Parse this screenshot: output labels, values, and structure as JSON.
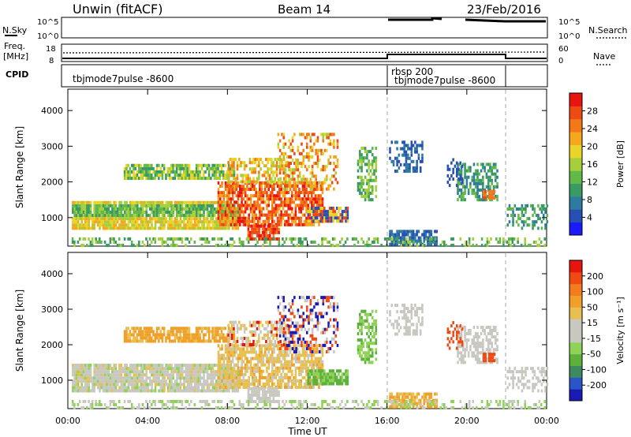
{
  "header": {
    "title": "Unwin (fitACF)",
    "beam": "Beam 14",
    "date": "23/Feb/2016"
  },
  "params": {
    "nsky_label": "N.Sky",
    "nsky_ticks": [
      "10^5",
      "10^0"
    ],
    "nsearch_label": "N.Search",
    "freq_label_line1": "Freq.",
    "freq_label_line2": "[MHz]",
    "freq_ticks": [
      "18",
      "8"
    ],
    "nave_ticks": [
      "60",
      "0"
    ],
    "nave_label": "Nave",
    "cpid_label": "CPID"
  },
  "cpid": {
    "left_name": "tbjmode7pulse -8600",
    "mid_name_line1": "rbsp 200",
    "mid_name_line2": "tbjmode7pulse -8600",
    "segment_starts_hr": [
      0,
      16,
      22
    ]
  },
  "chart_data": [
    {
      "type": "heatmap",
      "name": "power",
      "ylabel": "Slant Range [km]",
      "yticks": [
        "1000",
        "2000",
        "3000",
        "4000"
      ],
      "ylim": [
        200,
        4600
      ],
      "xlim_hr": [
        0,
        24
      ],
      "colorbar_label": "Power [dB]",
      "colorbar_ticks": [
        "4",
        "8",
        "12",
        "16",
        "20",
        "24",
        "28"
      ],
      "colorbar_range": [
        0,
        32
      ],
      "colors": [
        "#1a1aff",
        "#2850b4",
        "#2e7aa0",
        "#3a9a64",
        "#62b94a",
        "#a6cf3c",
        "#ead42a",
        "#f5a81e",
        "#f47818",
        "#ee4a14",
        "#e8150f"
      ]
    },
    {
      "type": "heatmap",
      "name": "velocity",
      "ylabel": "Slant Range [km]",
      "yticks": [
        "1000",
        "2000",
        "3000",
        "4000"
      ],
      "ylim": [
        200,
        4600
      ],
      "xlim_hr": [
        0,
        24
      ],
      "colorbar_label": "Velocity [m s⁻¹]",
      "colorbar_ticks": [
        "200",
        "100",
        "50",
        "15",
        "-15",
        "-50",
        "-100",
        "-200"
      ],
      "colors": [
        "#1a1ab4",
        "#2a55c8",
        "#3e8a60",
        "#5cb13c",
        "#8ed256",
        "#c8c8c0",
        "#c8c8c0",
        "#e8c052",
        "#f0a02a",
        "#f47c1e",
        "#f04a14",
        "#e8150f"
      ]
    }
  ],
  "xaxis": {
    "ticks": [
      "00:00",
      "04:00",
      "08:00",
      "12:00",
      "16:00",
      "20:00",
      "00:00"
    ],
    "label": "Time UT"
  }
}
